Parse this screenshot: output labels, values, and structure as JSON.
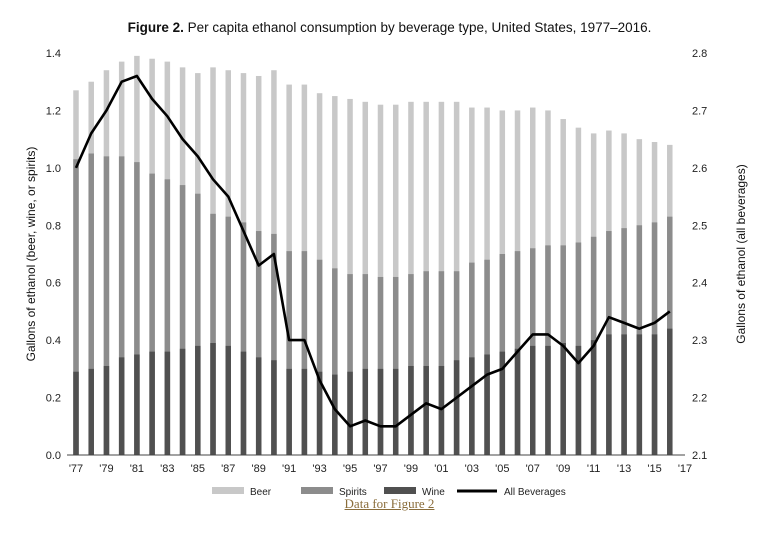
{
  "header": {
    "title_bold": "Figure 2.",
    "title_rest": "Per capita ethanol consumption by beverage type, United States, 1977–2016."
  },
  "link": {
    "label": "Data for Figure 2"
  },
  "chart_data": {
    "type": "bar",
    "title": "Figure 2. Per capita ethanol consumption by beverage type, United States, 1977–2016.",
    "ylabel": "Gallons of ethanol (beer, wine, or spirits)",
    "y2label": "Gallons of ethanol (all beverages)",
    "ylim": [
      0,
      1.4
    ],
    "y2lim": [
      2.1,
      2.8
    ],
    "yticks": [
      "0.0",
      "0.2",
      "0.4",
      "0.6",
      "0.8",
      "1.0",
      "1.2",
      "1.4"
    ],
    "y2ticks": [
      "2.1",
      "2.2",
      "2.3",
      "2.4",
      "2.5",
      "2.6",
      "2.7",
      "2.8"
    ],
    "xticks": [
      "'77",
      "'79",
      "'81",
      "'83",
      "'85",
      "'87",
      "'89",
      "'91",
      "'93",
      "'95",
      "'97",
      "'99",
      "'01",
      "'03",
      "'05",
      "'07",
      "'09",
      "'11",
      "'13",
      "'15",
      "'17"
    ],
    "x": [
      1977,
      1978,
      1979,
      1980,
      1981,
      1982,
      1983,
      1984,
      1985,
      1986,
      1987,
      1988,
      1989,
      1990,
      1991,
      1992,
      1993,
      1994,
      1995,
      1996,
      1997,
      1998,
      1999,
      2000,
      2001,
      2002,
      2003,
      2004,
      2005,
      2006,
      2007,
      2008,
      2009,
      2010,
      2011,
      2012,
      2013,
      2014,
      2015,
      2016
    ],
    "legend_position": "bottom",
    "colors": {
      "beer": "#c8c8c8",
      "spirits": "#8c8c8c",
      "wine": "#505050",
      "all": "#000000"
    },
    "series": [
      {
        "name": "Beer",
        "type": "bar",
        "axis": "left",
        "values": [
          1.27,
          1.3,
          1.34,
          1.37,
          1.39,
          1.38,
          1.37,
          1.35,
          1.33,
          1.35,
          1.34,
          1.33,
          1.32,
          1.34,
          1.29,
          1.29,
          1.26,
          1.25,
          1.24,
          1.23,
          1.22,
          1.22,
          1.23,
          1.23,
          1.23,
          1.23,
          1.21,
          1.21,
          1.2,
          1.2,
          1.21,
          1.2,
          1.17,
          1.14,
          1.12,
          1.13,
          1.12,
          1.1,
          1.09,
          1.08
        ]
      },
      {
        "name": "Spirits",
        "type": "bar",
        "axis": "left",
        "values": [
          1.03,
          1.05,
          1.04,
          1.04,
          1.02,
          0.98,
          0.96,
          0.94,
          0.91,
          0.84,
          0.83,
          0.81,
          0.78,
          0.77,
          0.71,
          0.71,
          0.68,
          0.65,
          0.63,
          0.63,
          0.62,
          0.62,
          0.63,
          0.64,
          0.64,
          0.64,
          0.67,
          0.68,
          0.7,
          0.71,
          0.72,
          0.73,
          0.73,
          0.74,
          0.76,
          0.78,
          0.79,
          0.8,
          0.81,
          0.83
        ]
      },
      {
        "name": "Wine",
        "type": "bar",
        "axis": "left",
        "values": [
          0.29,
          0.3,
          0.31,
          0.34,
          0.35,
          0.36,
          0.36,
          0.37,
          0.38,
          0.39,
          0.38,
          0.36,
          0.34,
          0.33,
          0.3,
          0.3,
          0.29,
          0.28,
          0.29,
          0.3,
          0.3,
          0.3,
          0.31,
          0.31,
          0.31,
          0.33,
          0.34,
          0.35,
          0.36,
          0.37,
          0.38,
          0.38,
          0.39,
          0.38,
          0.4,
          0.42,
          0.42,
          0.42,
          0.42,
          0.44
        ]
      },
      {
        "name": "All Beverages",
        "type": "line",
        "axis": "right",
        "values": [
          2.6,
          2.66,
          2.7,
          2.75,
          2.76,
          2.72,
          2.69,
          2.65,
          2.62,
          2.58,
          2.55,
          2.49,
          2.43,
          2.45,
          2.3,
          2.3,
          2.23,
          2.18,
          2.15,
          2.16,
          2.15,
          2.15,
          2.17,
          2.19,
          2.18,
          2.2,
          2.22,
          2.24,
          2.25,
          2.28,
          2.31,
          2.31,
          2.29,
          2.26,
          2.29,
          2.34,
          2.33,
          2.32,
          2.33,
          2.35
        ]
      }
    ]
  }
}
